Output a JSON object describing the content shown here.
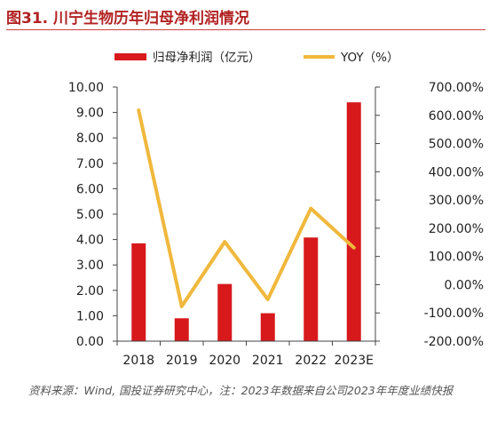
{
  "title": "图31. 川宁生物历年归母净利润情况",
  "source": "资料来源：Wind, 国投证券研究中心，注：2023年数据来自公司2023年年度业绩快报",
  "chart_data": {
    "type": "bar+line",
    "categories": [
      "2018",
      "2019",
      "2020",
      "2021",
      "2022",
      "2023E"
    ],
    "series": [
      {
        "name": "归母净利润（亿元）",
        "type": "bar",
        "axis": "left",
        "color": "#d7191c",
        "values": [
          3.85,
          0.9,
          2.25,
          1.1,
          4.08,
          9.4
        ]
      },
      {
        "name": "YOY（%）",
        "type": "line",
        "axis": "right",
        "color": "#f0b83c",
        "values": [
          618,
          -77,
          152,
          -52,
          270,
          131
        ]
      }
    ],
    "y_left": {
      "min": 0,
      "max": 10,
      "step": 1,
      "tick_labels": [
        "0.00",
        "1.00",
        "2.00",
        "3.00",
        "4.00",
        "5.00",
        "6.00",
        "7.00",
        "8.00",
        "9.00",
        "10.00"
      ]
    },
    "y_right": {
      "min": -200,
      "max": 700,
      "step": 100,
      "tick_labels": [
        "-200.00%",
        "-100.00%",
        "0.00%",
        "100.00%",
        "200.00%",
        "300.00%",
        "400.00%",
        "500.00%",
        "600.00%",
        "700.00%"
      ]
    },
    "legend_position": "top",
    "grid": false
  }
}
